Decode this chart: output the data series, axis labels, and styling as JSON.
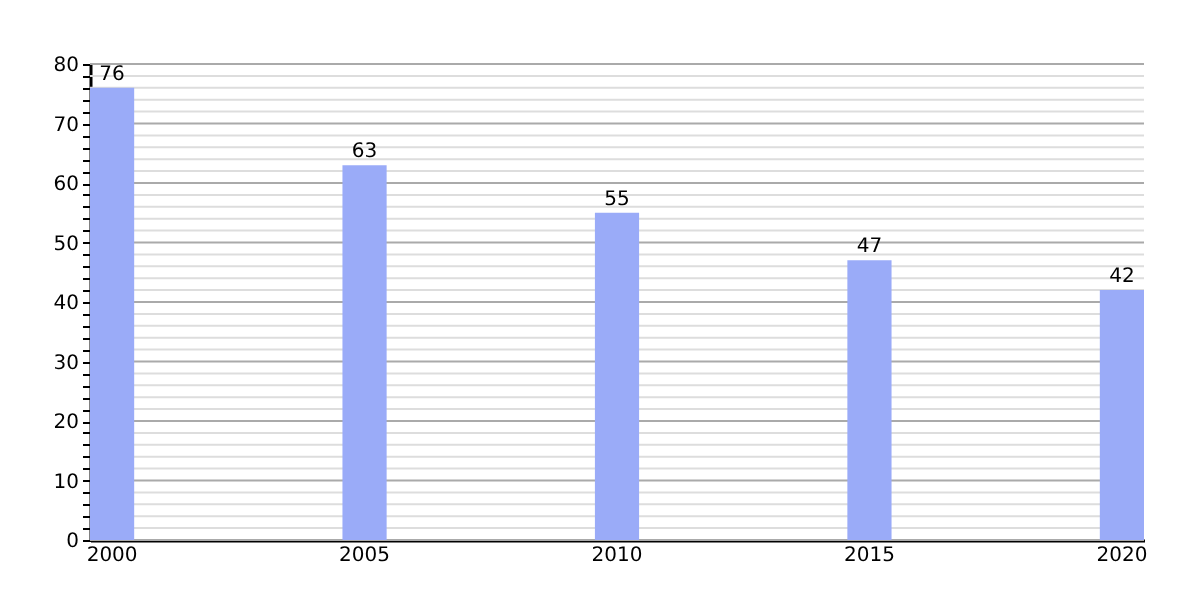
{
  "chart_data": {
    "type": "bar",
    "categories": [
      "2000",
      "2005",
      "2010",
      "2015",
      "2020"
    ],
    "values": [
      76,
      63,
      55,
      47,
      42
    ],
    "color": "#9aabf8",
    "data_labels": true,
    "ylim": [
      0,
      80
    ],
    "yticks": [
      0,
      {
        "value": 2,
        "label": null
      },
      {
        "value": 4,
        "label": null
      },
      {
        "value": 6,
        "label": null
      },
      {
        "value": 8,
        "label": null
      },
      10,
      {
        "value": 12,
        "label": null
      },
      {
        "value": 14,
        "label": null
      },
      {
        "value": 16,
        "label": null
      },
      {
        "value": 18,
        "label": null
      },
      20,
      {
        "value": 22,
        "label": null
      },
      {
        "value": 24,
        "label": null
      },
      {
        "value": 26,
        "label": null
      },
      {
        "value": 28,
        "label": null
      },
      30,
      {
        "value": 32,
        "label": null
      },
      {
        "value": 34,
        "label": null
      },
      {
        "value": 36,
        "label": null
      },
      {
        "value": 38,
        "label": null
      },
      40,
      {
        "value": 42,
        "label": null
      },
      {
        "value": 44,
        "label": null
      },
      {
        "value": 46,
        "label": null
      },
      {
        "value": 48,
        "label": null
      },
      50,
      {
        "value": 52,
        "label": null
      },
      {
        "value": 54,
        "label": null
      },
      {
        "value": 56,
        "label": null
      },
      {
        "value": 58,
        "label": null
      },
      60,
      {
        "value": 62,
        "label": null
      },
      {
        "value": 64,
        "label": null
      },
      {
        "value": 66,
        "label": null
      },
      {
        "value": 68,
        "label": null
      },
      70,
      {
        "value": 72,
        "label": null
      },
      {
        "value": 74,
        "label": null
      },
      {
        "value": 76,
        "label": null
      },
      {
        "value": 78,
        "label": null
      },
      80
    ],
    "grid": "y"
  }
}
